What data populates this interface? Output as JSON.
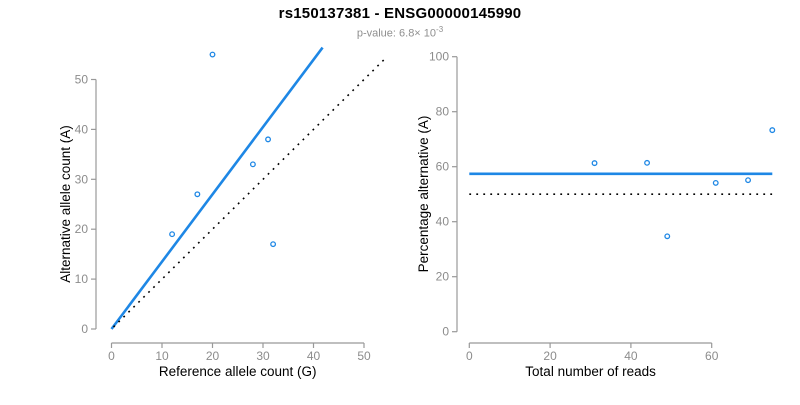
{
  "header": {
    "title": "rs150137381 - ENSG00000145990",
    "subtitle_prefix": "p-value: 6.8× ",
    "subtitle_base": "10",
    "subtitle_exponent": "-3"
  },
  "colors": {
    "accent_blue": "#1E87E5",
    "axis_gray": "#999999",
    "tick_label_gray": "#8c8c8c",
    "label_black": "#000000"
  },
  "chart_data": [
    {
      "type": "scatter",
      "name": "allele-count-scatter",
      "xlabel": "Reference allele count (G)",
      "ylabel": "Alternative allele count (A)",
      "xlim": [
        0,
        50
      ],
      "ylim": [
        0,
        50
      ],
      "xticks": [
        0,
        10,
        20,
        30,
        40,
        50
      ],
      "yticks": [
        0,
        10,
        20,
        30,
        40,
        50
      ],
      "grid": false,
      "points": [
        [
          12,
          19
        ],
        [
          17,
          27
        ],
        [
          20,
          55
        ],
        [
          28,
          33
        ],
        [
          31,
          38
        ],
        [
          32,
          17
        ]
      ],
      "lines": [
        {
          "name": "fit-line",
          "x1": 0,
          "y1": 0,
          "x2": 41.8,
          "y2": 56.4,
          "style": "solid",
          "color": "blue"
        },
        {
          "name": "identity-line",
          "x1": 0.4,
          "y1": 0.4,
          "x2": 54.3,
          "y2": 54.3,
          "style": "dotted",
          "color": "black"
        }
      ]
    },
    {
      "type": "scatter",
      "name": "percentage-vs-reads-scatter",
      "xlabel": "Total number of reads",
      "ylabel": "Percentage alternative (A)",
      "xlim": [
        0,
        75
      ],
      "ylim": [
        0,
        100
      ],
      "xticks": [
        0,
        20,
        40,
        60
      ],
      "yticks": [
        0,
        20,
        40,
        60,
        80,
        100
      ],
      "grid": false,
      "points": [
        [
          31,
          61.3
        ],
        [
          44,
          61.4
        ],
        [
          49,
          34.7
        ],
        [
          61,
          54.1
        ],
        [
          69,
          55.1
        ],
        [
          75,
          73.3
        ]
      ],
      "lines": [
        {
          "name": "mean-percentage-line",
          "x1": 0,
          "y1": 57.4,
          "x2": 75,
          "y2": 57.4,
          "style": "solid",
          "color": "blue"
        },
        {
          "name": "fifty-percent-line",
          "x1": 0,
          "y1": 50,
          "x2": 75,
          "y2": 50,
          "style": "dotted",
          "color": "black"
        }
      ]
    }
  ]
}
